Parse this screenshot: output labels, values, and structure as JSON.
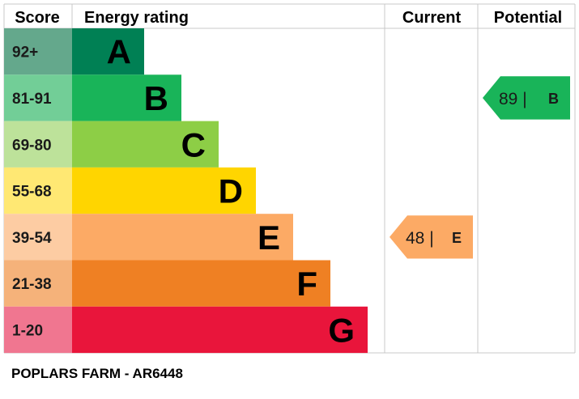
{
  "chart_data": {
    "type": "bar",
    "headers": {
      "score": "Score",
      "rating": "Energy rating",
      "current": "Current",
      "potential": "Potential"
    },
    "bands": [
      {
        "score": "92+",
        "letter": "A",
        "color": "#008054",
        "score_color": "#64a88c"
      },
      {
        "score": "81-91",
        "letter": "B",
        "color": "#19b459",
        "score_color": "#72ce97"
      },
      {
        "score": "69-80",
        "letter": "C",
        "color": "#8dce46",
        "score_color": "#bde29a"
      },
      {
        "score": "55-68",
        "letter": "D",
        "color": "#ffd500",
        "score_color": "#ffe873"
      },
      {
        "score": "39-54",
        "letter": "E",
        "color": "#fcaa65",
        "score_color": "#fdcca3"
      },
      {
        "score": "21-38",
        "letter": "F",
        "color": "#ef8023",
        "score_color": "#f5b27a"
      },
      {
        "score": "1-20",
        "letter": "G",
        "color": "#e9153b",
        "score_color": "#f07690"
      }
    ],
    "current": {
      "value": 48,
      "letter": "E",
      "color": "#fcaa65"
    },
    "potential": {
      "value": 89,
      "letter": "B",
      "color": "#19b459"
    }
  },
  "footer": "POPLARS FARM - AR6448"
}
